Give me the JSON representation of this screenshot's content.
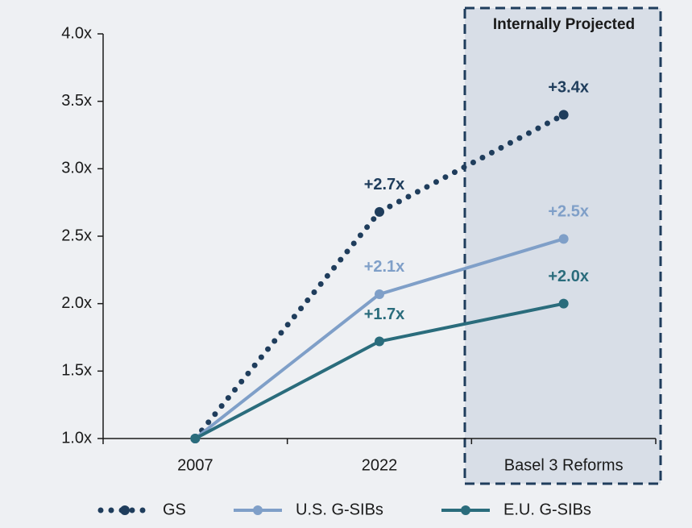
{
  "chart_data": {
    "type": "line",
    "annotation": "Internally Projected",
    "categories": [
      "2007",
      "2022",
      "Basel 3 Reforms"
    ],
    "series": [
      {
        "name": "GS",
        "color": "#1f3d5c",
        "style": "dotted",
        "values": [
          1.0,
          2.68,
          3.4
        ],
        "value_labels": [
          null,
          "+2.7x",
          "+3.4x"
        ]
      },
      {
        "name": "U.S. G-SIBs",
        "color": "#7f9fc8",
        "style": "solid",
        "values": [
          1.0,
          2.07,
          2.48
        ],
        "value_labels": [
          null,
          "+2.1x",
          "+2.5x"
        ]
      },
      {
        "name": "E.U. G-SIBs",
        "color": "#2a6c7c",
        "style": "solid",
        "values": [
          1.0,
          1.72,
          2.0
        ],
        "value_labels": [
          null,
          "+1.7x",
          "+2.0x"
        ]
      }
    ],
    "ylim": [
      1.0,
      4.0
    ],
    "yticks": [
      {
        "value": 1.0,
        "label": "1.0x"
      },
      {
        "value": 1.5,
        "label": "1.5x"
      },
      {
        "value": 2.0,
        "label": "2.0x"
      },
      {
        "value": 2.5,
        "label": "2.5x"
      },
      {
        "value": 3.0,
        "label": "3.0x"
      },
      {
        "value": 3.5,
        "label": "3.5x"
      },
      {
        "value": 4.0,
        "label": "4.0x"
      }
    ],
    "legend": "bottom"
  }
}
